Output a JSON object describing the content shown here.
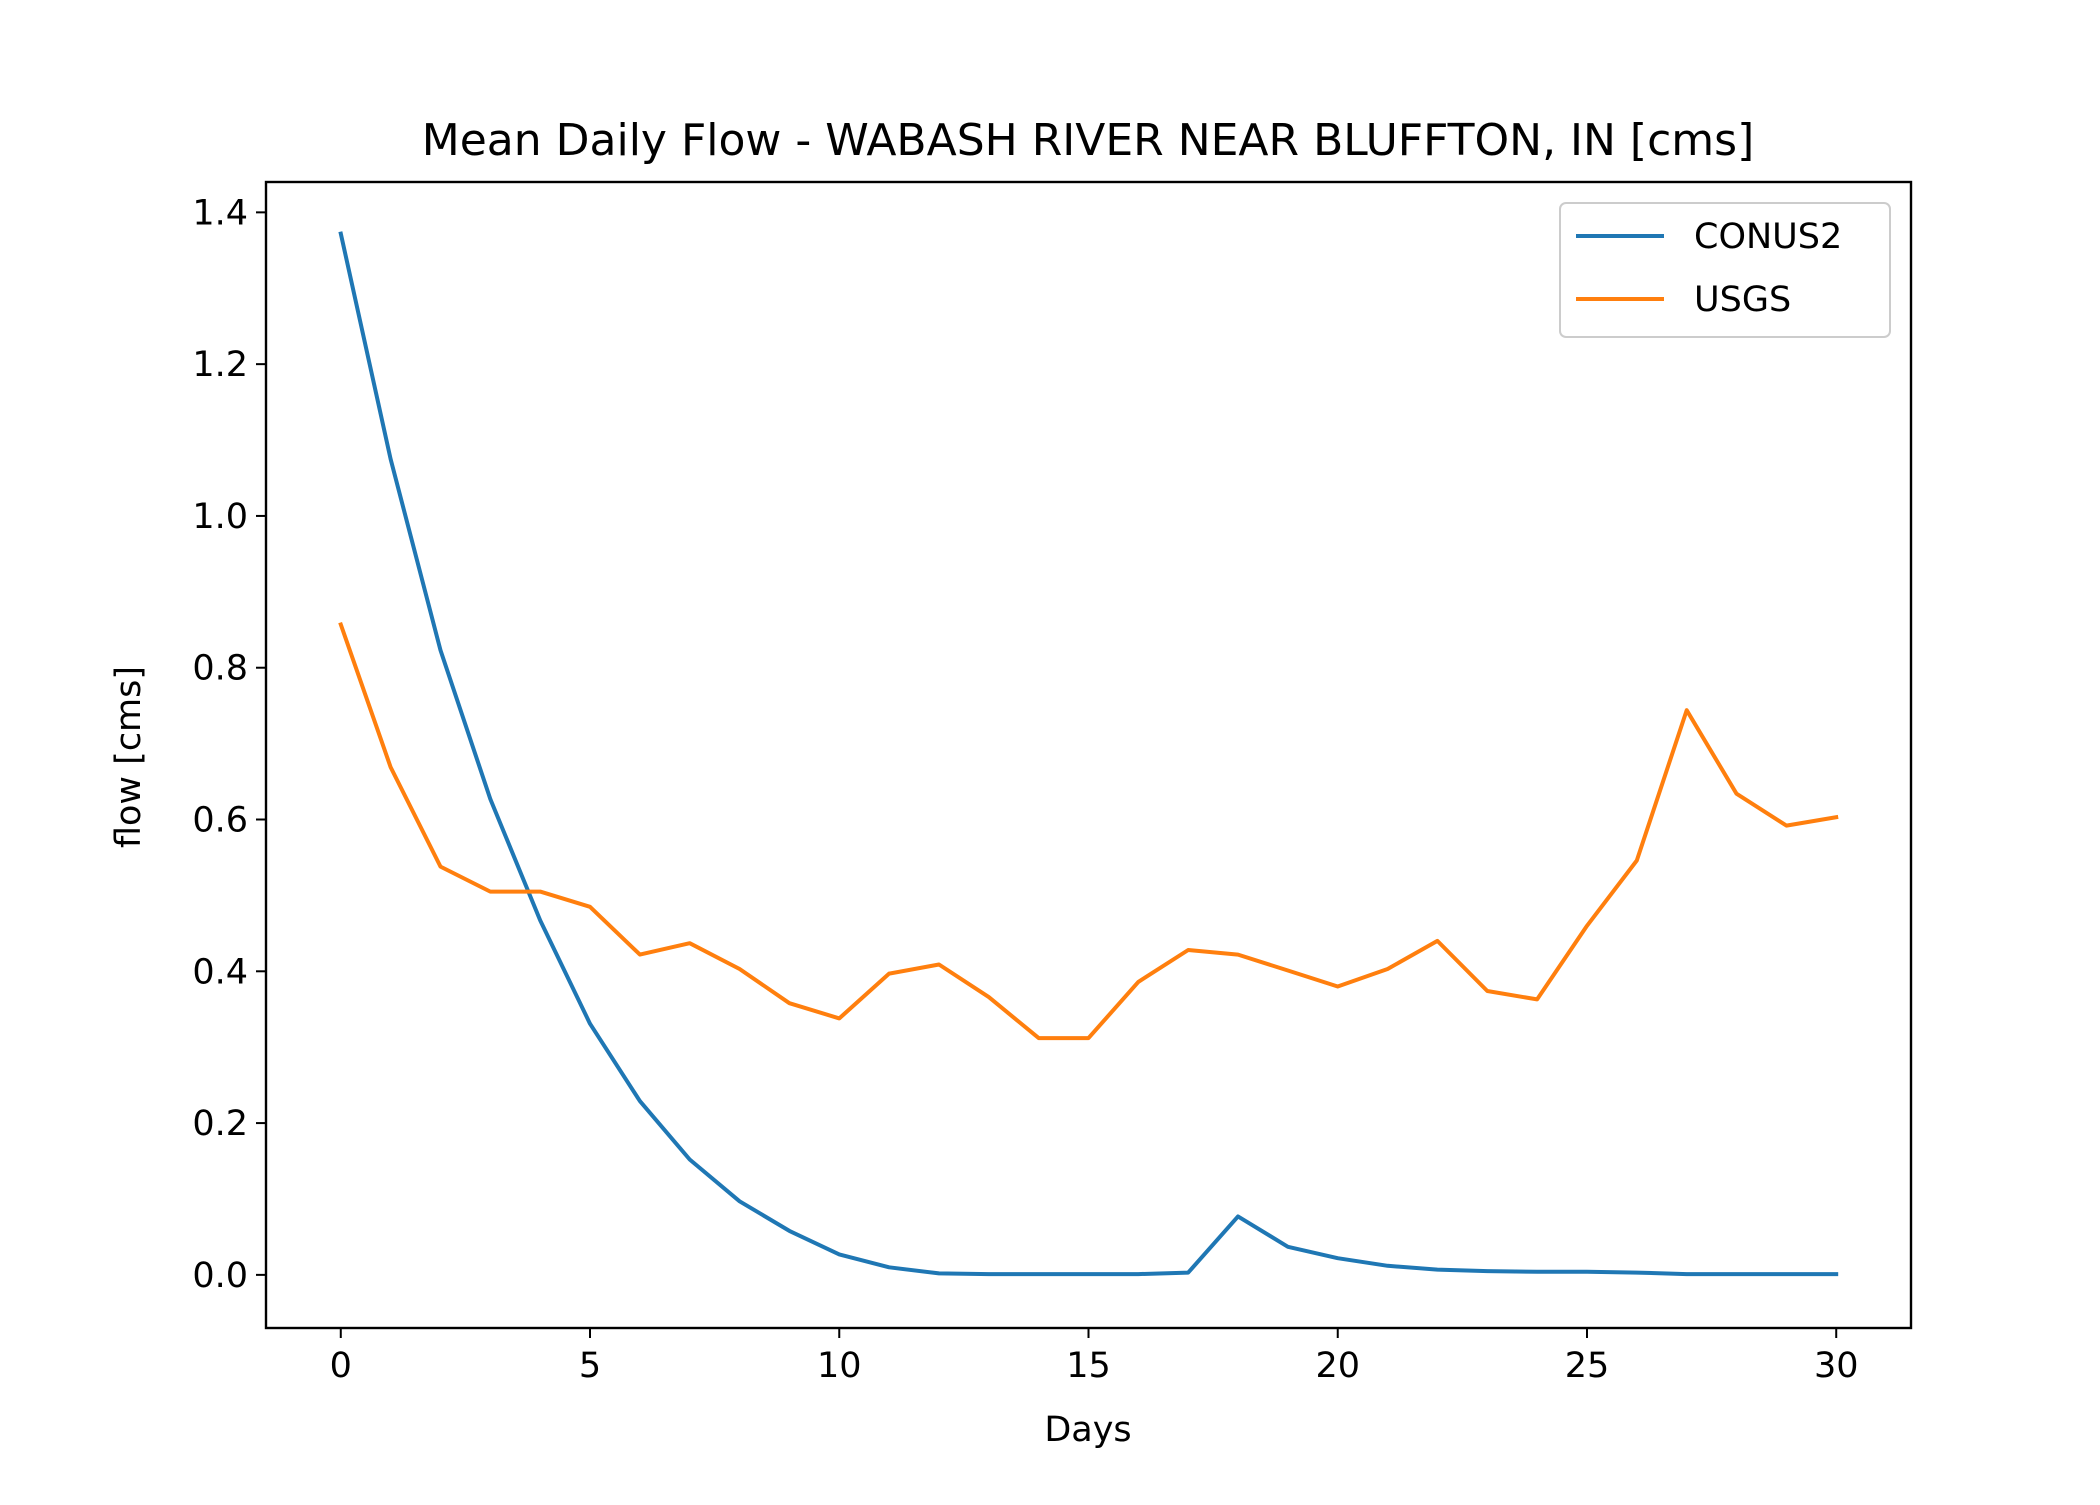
{
  "chart_data": {
    "type": "line",
    "title": "Mean Daily Flow - WABASH RIVER NEAR BLUFFTON, IN [cms]",
    "xlabel": "Days",
    "ylabel": "flow [cms]",
    "xlim": [
      -1.5,
      31.5
    ],
    "ylim": [
      -0.07,
      1.44
    ],
    "xticks": [
      0,
      5,
      10,
      15,
      20,
      25,
      30
    ],
    "yticks": [
      0.0,
      0.2,
      0.4,
      0.6,
      0.8,
      1.0,
      1.2,
      1.4
    ],
    "ytick_labels": [
      "0.0",
      "0.2",
      "0.4",
      "0.6",
      "0.8",
      "1.0",
      "1.2",
      "1.4"
    ],
    "grid": false,
    "legend": "top-right",
    "x": [
      0,
      1,
      2,
      3,
      4,
      5,
      6,
      7,
      8,
      9,
      10,
      11,
      12,
      13,
      14,
      15,
      16,
      17,
      18,
      19,
      20,
      21,
      22,
      23,
      24,
      25,
      26,
      27,
      28,
      29,
      30
    ],
    "series": [
      {
        "name": "CONUS2",
        "color": "#1f77b4",
        "values": [
          1.372,
          1.075,
          0.823,
          0.627,
          0.467,
          0.331,
          0.229,
          0.152,
          0.097,
          0.058,
          0.027,
          0.01,
          0.002,
          0.001,
          0.001,
          0.001,
          0.001,
          0.003,
          0.077,
          0.037,
          0.022,
          0.012,
          0.007,
          0.005,
          0.004,
          0.004,
          0.003,
          0.001,
          0.001,
          0.001,
          0.001
        ]
      },
      {
        "name": "USGS",
        "color": "#ff7f0e",
        "values": [
          0.857,
          0.669,
          0.538,
          0.505,
          0.505,
          0.485,
          0.422,
          0.437,
          0.403,
          0.358,
          0.338,
          0.397,
          0.409,
          0.366,
          0.312,
          0.312,
          0.386,
          0.428,
          0.422,
          0.401,
          0.38,
          0.403,
          0.44,
          0.374,
          0.363,
          0.46,
          0.546,
          0.744,
          0.634,
          0.592,
          0.603
        ]
      }
    ]
  }
}
